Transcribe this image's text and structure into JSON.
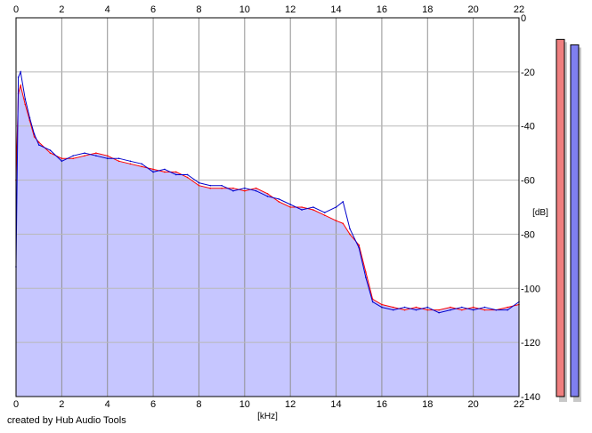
{
  "chart_data": {
    "type": "line",
    "title": "",
    "xlabel": "[kHz]",
    "ylabel": "[dB]",
    "xlim": [
      0,
      22
    ],
    "ylim": [
      -140,
      0
    ],
    "x_ticks": [
      0,
      2,
      4,
      6,
      8,
      10,
      12,
      14,
      16,
      18,
      20,
      22
    ],
    "y_ticks": [
      0,
      -20,
      -40,
      -60,
      -80,
      -100,
      -120,
      -140
    ],
    "grid": true,
    "legend": "none",
    "series": [
      {
        "color": "#ff0000",
        "x": [
          0,
          0.1,
          0.2,
          0.4,
          0.6,
          0.8,
          1,
          1.5,
          2,
          2.5,
          3,
          3.5,
          4,
          4.5,
          5,
          5.5,
          6,
          6.5,
          7,
          7.5,
          8,
          8.5,
          9,
          9.5,
          10,
          10.5,
          11,
          11.5,
          12,
          12.5,
          13,
          13.5,
          14,
          14.3,
          14.6,
          15,
          15.3,
          15.6,
          16,
          16.5,
          17,
          17.5,
          18,
          18.5,
          19,
          19.5,
          20,
          20.5,
          21,
          21.5,
          22
        ],
        "values": [
          -60,
          -28,
          -25,
          -32,
          -38,
          -44,
          -46,
          -50,
          -52,
          -52,
          -51,
          -50,
          -51,
          -53,
          -54,
          -55,
          -56,
          -57,
          -57,
          -59,
          -62,
          -63,
          -63,
          -63,
          -64,
          -63,
          -65,
          -68,
          -70,
          -70,
          -71,
          -73,
          -75,
          -76,
          -80,
          -84,
          -94,
          -104,
          -106,
          -107,
          -108,
          -107,
          -108,
          -108,
          -107,
          -108,
          -107,
          -108,
          -108,
          -107,
          -106
        ]
      },
      {
        "color": "#0000cc",
        "x": [
          0,
          0.1,
          0.2,
          0.4,
          0.6,
          0.8,
          1,
          1.5,
          2,
          2.5,
          3,
          3.5,
          4,
          4.5,
          5,
          5.5,
          6,
          6.5,
          7,
          7.5,
          8,
          8.5,
          9,
          9.5,
          10,
          10.5,
          11,
          11.5,
          12,
          12.5,
          13,
          13.5,
          14,
          14.3,
          14.6,
          15,
          15.3,
          15.6,
          16,
          16.5,
          17,
          17.5,
          18,
          18.5,
          19,
          19.5,
          20,
          20.5,
          21,
          21.5,
          22
        ],
        "values": [
          -92,
          -22,
          -20,
          -30,
          -37,
          -43,
          -47,
          -49,
          -53,
          -51,
          -50,
          -51,
          -52,
          -52,
          -53,
          -54,
          -57,
          -56,
          -58,
          -58,
          -61,
          -62,
          -62,
          -64,
          -63,
          -64,
          -66,
          -67,
          -69,
          -71,
          -70,
          -72,
          -70,
          -68,
          -78,
          -85,
          -96,
          -105,
          -107,
          -108,
          -107,
          -108,
          -107,
          -109,
          -108,
          -107,
          -108,
          -107,
          -108,
          -108,
          -105
        ]
      }
    ],
    "meters": [
      {
        "color": "#ef7f7f",
        "top_db": -8
      },
      {
        "color": "#7f7fef",
        "top_db": -10
      }
    ]
  },
  "footer": {
    "credit": "created by Hub Audio Tools"
  }
}
